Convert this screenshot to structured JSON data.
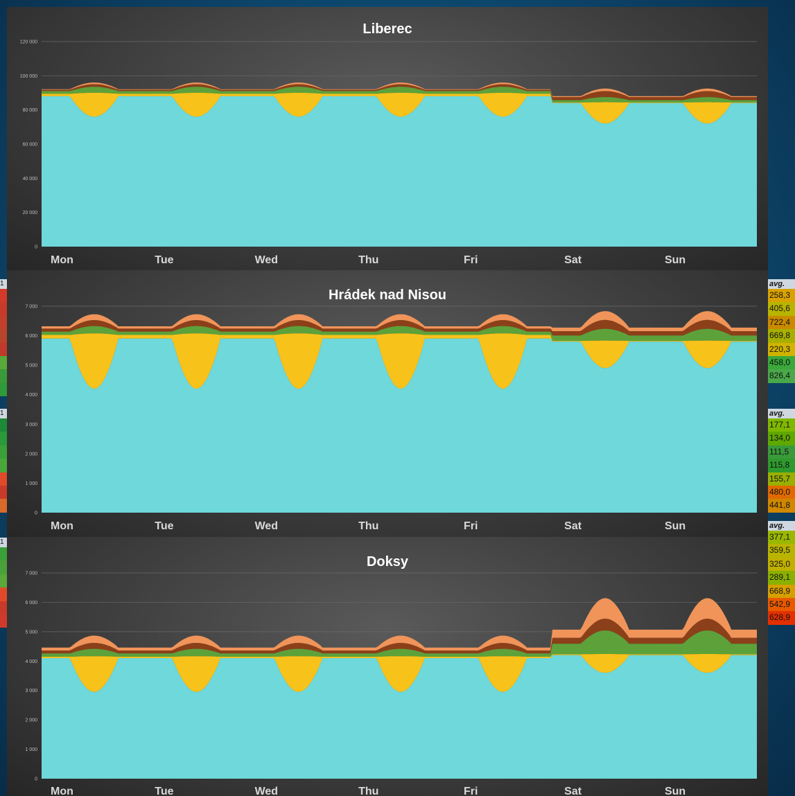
{
  "chart_data": [
    {
      "type": "area",
      "title": "Liberec",
      "categories": [
        "Mon",
        "Tue",
        "Wed",
        "Thu",
        "Fri",
        "Sat",
        "Sun"
      ],
      "ylim": [
        0,
        120000
      ],
      "yticks": [
        0,
        20000,
        40000,
        60000,
        80000,
        100000,
        120000
      ],
      "ytick_labels": [
        "0",
        "20 000",
        "40 000",
        "60 000",
        "80 000",
        "100 000",
        "120 000"
      ],
      "grid": true,
      "weekday": {
        "night": 88000,
        "dip": 76000,
        "yellow": 12000,
        "green": 3500,
        "brown": 1500,
        "orange": 1000
      },
      "weekend": {
        "night": 84000,
        "dip": 72000,
        "yellow": 3000,
        "green": 3000,
        "brown": 3500,
        "orange": 1500
      }
    },
    {
      "type": "area",
      "title": "Hrádek nad Nisou",
      "categories": [
        "Mon",
        "Tue",
        "Wed",
        "Thu",
        "Fri",
        "Sat",
        "Sun"
      ],
      "ylim": [
        0,
        7000
      ],
      "yticks": [
        0,
        1000,
        2000,
        3000,
        4000,
        5000,
        6000,
        7000
      ],
      "ytick_labels": [
        "0",
        "1 000",
        "2 000",
        "3 000",
        "4 000",
        "5 000",
        "6 000",
        "7 000"
      ],
      "grid": true,
      "weekday": {
        "night": 5900,
        "dip": 4200,
        "yellow": 1050,
        "green": 250,
        "brown": 200,
        "orange": 200
      },
      "weekend": {
        "night": 5800,
        "dip": 4900,
        "yellow": 200,
        "green": 400,
        "brown": 300,
        "orange": 300
      }
    },
    {
      "type": "area",
      "title": "Doksy",
      "categories": [
        "Mon",
        "Tue",
        "Wed",
        "Thu",
        "Fri",
        "Sat",
        "Sun"
      ],
      "ylim": [
        0,
        7000
      ],
      "yticks": [
        0,
        1000,
        2000,
        3000,
        4000,
        5000,
        6000,
        7000
      ],
      "ytick_labels": [
        "0",
        "1 000",
        "2 000",
        "3 000",
        "4 000",
        "5 000",
        "6 000",
        "7 000"
      ],
      "grid": true,
      "weekday": {
        "night": 4100,
        "dip": 2950,
        "yellow": 400,
        "green": 250,
        "brown": 200,
        "orange": 250
      },
      "weekend": {
        "night": 4200,
        "dip": 3600,
        "yellow": 250,
        "green": 800,
        "brown": 400,
        "orange": 700
      }
    }
  ],
  "colors": {
    "cyan": "#6ed8da",
    "yellow": "#f7c21a",
    "green": "#5da13a",
    "brown": "#8c4019",
    "orange": "#f0945a",
    "olive": "#8a7a23"
  },
  "side_tables": [
    {
      "header": "avg.",
      "values": [
        "258,3",
        "405,6",
        "722,4",
        "669,8",
        "220,3",
        "458,0",
        "826,4"
      ],
      "colors": [
        "#d9a200",
        "#b8b400",
        "#c98a00",
        "#a7b000",
        "#d2b300",
        "#3aa83a",
        "#4aa84a"
      ]
    },
    {
      "header": "avg.",
      "values": [
        "177,1",
        "134,0",
        "111,5",
        "115,8",
        "155,7",
        "480,0",
        "441,8"
      ],
      "colors": [
        "#7fb800",
        "#5fa800",
        "#3a9a3a",
        "#2e9a2e",
        "#9ab000",
        "#e06a00",
        "#d08800"
      ]
    },
    {
      "header": "avg.",
      "values": [
        "377,1",
        "359,5",
        "325,0",
        "289,1",
        "668,9",
        "542,9",
        "628,9"
      ],
      "colors": [
        "#9ab800",
        "#b8b400",
        "#c0b000",
        "#8ab000",
        "#d6a000",
        "#e85a00",
        "#e23000"
      ]
    }
  ],
  "left_strips": [
    {
      "header": "1",
      "colors": [
        "#d23a2a",
        "#c83a2a",
        "#c0402a",
        "#b8452a",
        "#c03a2a",
        "#58a83a",
        "#3a9a3a",
        "#2e9a3a"
      ]
    },
    {
      "header": "1",
      "colors": [
        "#1d8a3a",
        "#2a9a3a",
        "#3aa03a",
        "#4aa83a",
        "#e04a2a",
        "#c83a2a",
        "#d86a2a"
      ]
    },
    {
      "header": "1",
      "colors": [
        "#3aa03a",
        "#4aa03a",
        "#5aa83a",
        "#e04a2a",
        "#c83a2a",
        "#d03a2a"
      ]
    }
  ]
}
